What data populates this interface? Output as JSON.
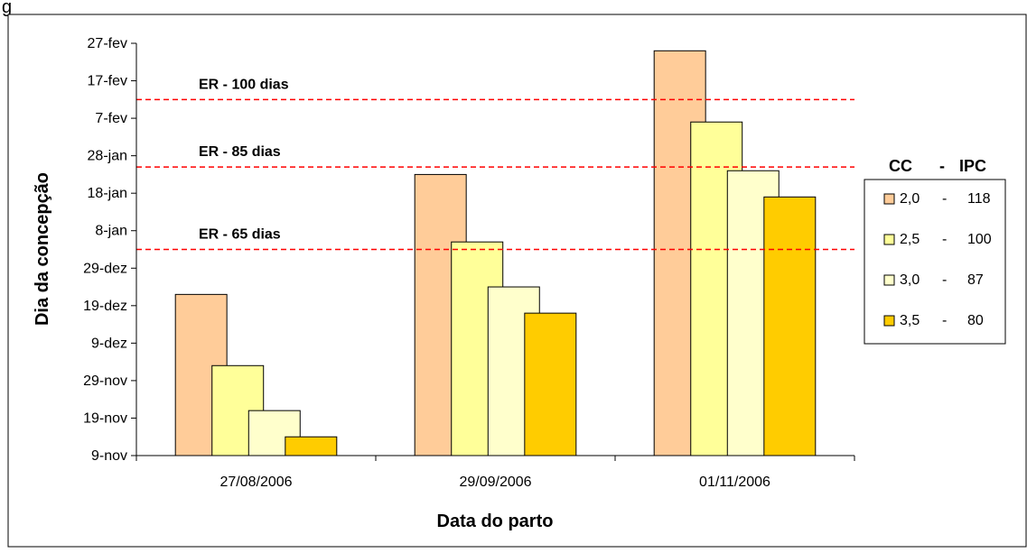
{
  "clipped_title": "g",
  "chart_data": {
    "type": "bar",
    "title": "",
    "xlabel": "Data do parto",
    "ylabel": "Dia da concepção",
    "categories": [
      "27/08/2006",
      "29/09/2006",
      "01/11/2006"
    ],
    "y_tick_labels": [
      "9-nov",
      "19-nov",
      "29-nov",
      "9-dez",
      "19-dez",
      "29-dez",
      "8-jan",
      "18-jan",
      "28-jan",
      "7-fev",
      "17-fev",
      "27-fev"
    ],
    "y_tick_dates": [
      "2006-11-09",
      "2006-11-19",
      "2006-11-29",
      "2006-12-09",
      "2006-12-19",
      "2006-12-29",
      "2007-01-08",
      "2007-01-18",
      "2007-01-28",
      "2007-02-07",
      "2007-02-17",
      "2007-02-27"
    ],
    "ylim": [
      "2006-11-09",
      "2007-02-27"
    ],
    "legend": {
      "title_left": "CC",
      "title_sep": "-",
      "title_right": "IPC",
      "placement": "right",
      "items": [
        {
          "cc": "2,0",
          "sep": "-",
          "ipc": "118"
        },
        {
          "cc": "2,5",
          "sep": "-",
          "ipc": "100"
        },
        {
          "cc": "3,0",
          "sep": "-",
          "ipc": "87"
        },
        {
          "cc": "3,5",
          "sep": "-",
          "ipc": "80"
        }
      ]
    },
    "series": [
      {
        "name": "2,0 - 118",
        "color": "#FFCC99",
        "values": [
          "2006-12-22",
          "2007-01-23",
          "2007-02-25"
        ]
      },
      {
        "name": "2,5 - 100",
        "color": "#FFFF99",
        "values": [
          "2006-12-03",
          "2007-01-05",
          "2007-02-06"
        ]
      },
      {
        "name": "3,0 - 87",
        "color": "#FFFFCC",
        "values": [
          "2006-11-21",
          "2006-12-24",
          "2007-01-24"
        ]
      },
      {
        "name": "3,5 - 80",
        "color": "#FFCC00",
        "values": [
          "2006-11-14",
          "2006-12-17",
          "2007-01-17"
        ]
      }
    ],
    "reference_lines": [
      {
        "label": "ER - 100 dias",
        "value": "2007-02-12",
        "color": "#FF0000",
        "style": "dashed"
      },
      {
        "label": "ER - 85 dias",
        "value": "2007-01-25",
        "color": "#FF0000",
        "style": "dashed"
      },
      {
        "label": "ER - 65 dias",
        "value": "2007-01-03",
        "color": "#FF0000",
        "style": "dashed"
      }
    ],
    "grid": false
  }
}
